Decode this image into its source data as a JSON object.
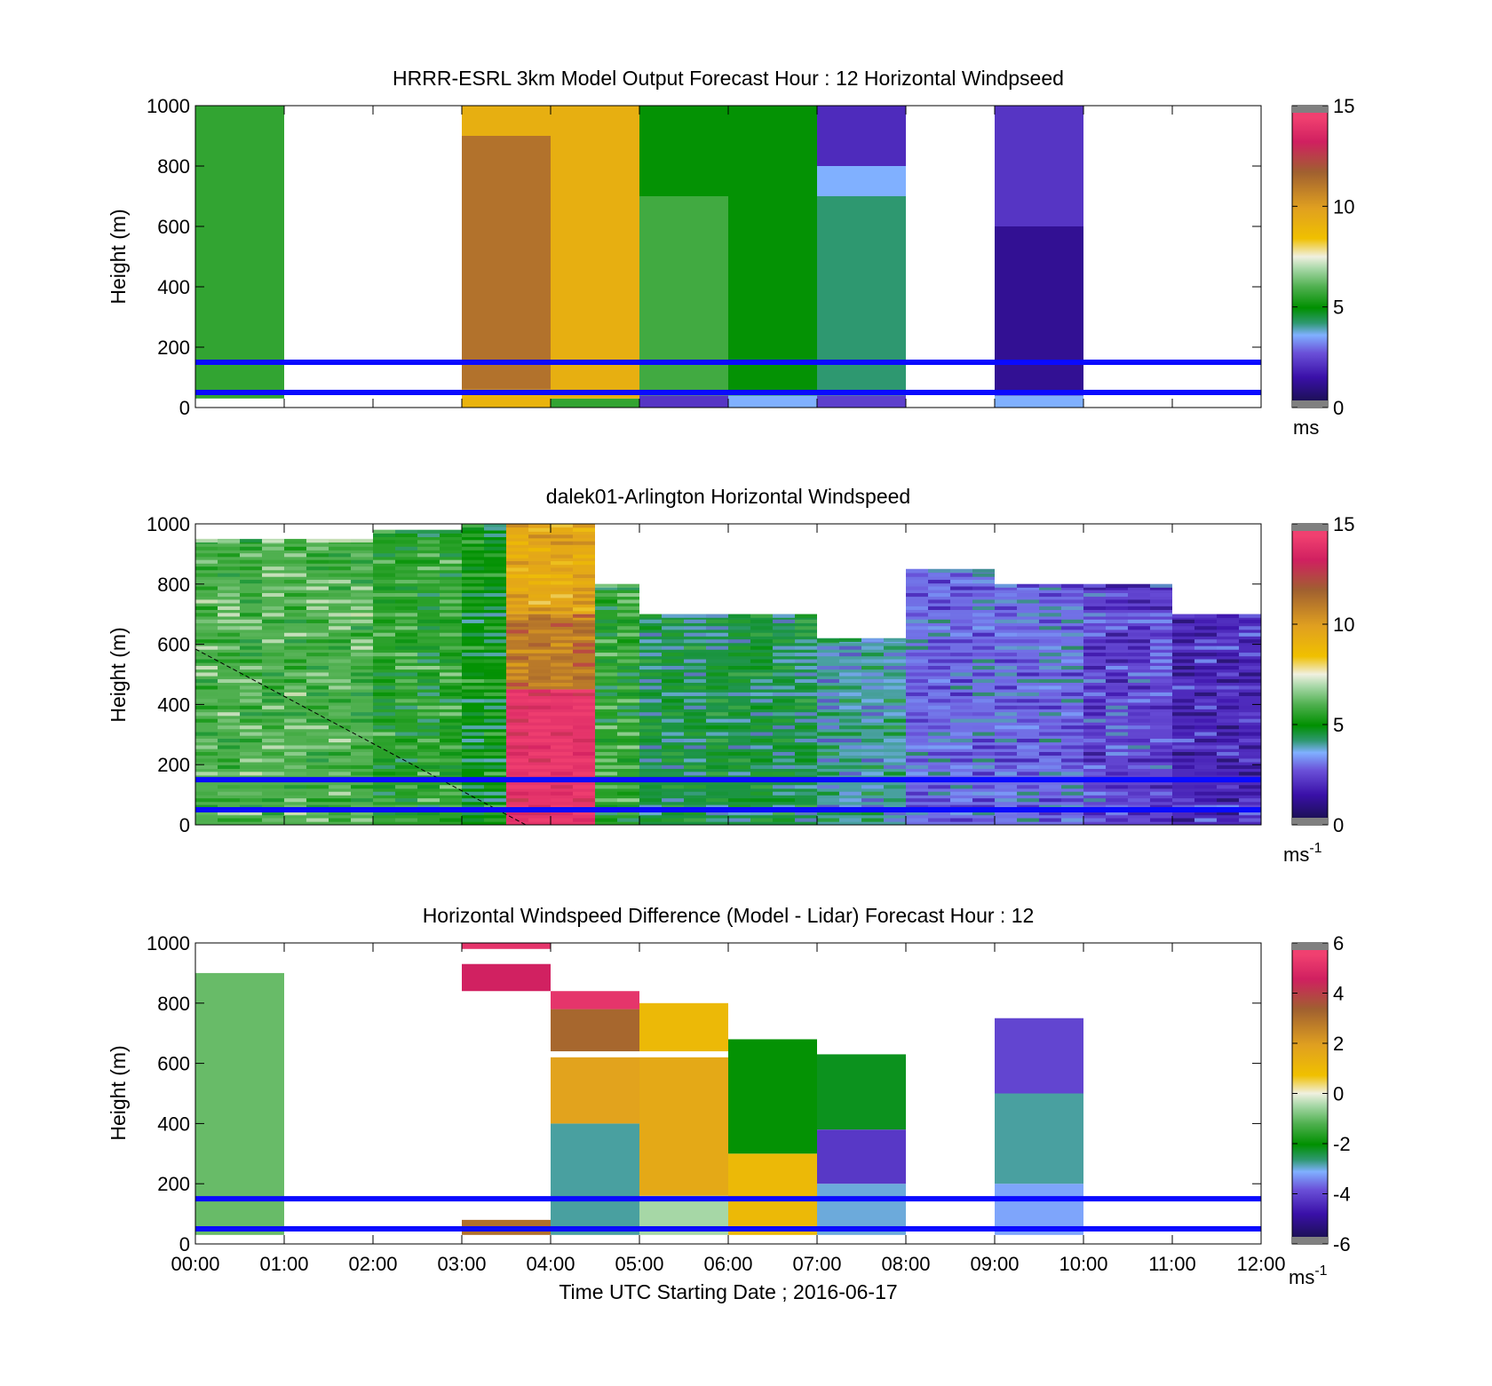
{
  "figure": {
    "xlabel": "Time UTC  Starting Date ; 2016-06-17",
    "time_ticks": [
      "00:00",
      "01:00",
      "02:00",
      "03:00",
      "04:00",
      "05:00",
      "06:00",
      "07:00",
      "08:00",
      "09:00",
      "10:00",
      "11:00",
      "12:00"
    ],
    "height_ticks": [
      "0",
      "200",
      "400",
      "600",
      "800",
      "1000"
    ],
    "reference_lines_m": [
      50,
      150
    ],
    "reference_line_color": "#0a0aff"
  },
  "colormap_stops": [
    "#141040",
    "#3a10a8",
    "#6a50d8",
    "#80b0ff",
    "#2e9870",
    "#009000",
    "#50b050",
    "#a8d8a8",
    "#f0f0e0",
    "#f0c000",
    "#e0a020",
    "#a06030",
    "#d02060",
    "#f04070"
  ],
  "chart_data": [
    {
      "type": "heatmap",
      "title": "HRRR-ESRL 3km Model Output   Forecast Hour : 12 Horizontal Windpseed",
      "ylabel": "Height (m)",
      "xlim_hours": [
        0,
        12
      ],
      "ylim": [
        0,
        1000
      ],
      "cbar_ticks": [
        "0",
        "5",
        "10",
        "15"
      ],
      "cbar_range": [
        0,
        15
      ],
      "cbar_unit": "ms",
      "cbar_unit_sup": "",
      "columns": [
        {
          "t0": 0,
          "t1": 1,
          "cells": [
            [
              30,
              1000,
              5.6
            ]
          ]
        },
        {
          "t0": 3,
          "t1": 4,
          "cells": [
            [
              0,
              60,
              9
            ],
            [
              60,
              900,
              11.2
            ],
            [
              900,
              1000,
              9.2
            ]
          ]
        },
        {
          "t0": 4,
          "t1": 5,
          "cells": [
            [
              0,
              30,
              5.6
            ],
            [
              30,
              1000,
              9.2
            ]
          ]
        },
        {
          "t0": 5,
          "t1": 6,
          "cells": [
            [
              0,
              40,
              2.2
            ],
            [
              40,
              700,
              5.8
            ],
            [
              700,
              1000,
              5.0
            ]
          ]
        },
        {
          "t0": 6,
          "t1": 7,
          "cells": [
            [
              0,
              40,
              3.6
            ],
            [
              40,
              1000,
              5.0
            ]
          ]
        },
        {
          "t0": 7,
          "t1": 8,
          "cells": [
            [
              0,
              40,
              2.4
            ],
            [
              40,
              700,
              4.2
            ],
            [
              700,
              800,
              3.6
            ],
            [
              800,
              1000,
              2.0
            ]
          ]
        },
        {
          "t0": 9,
          "t1": 10,
          "cells": [
            [
              0,
              40,
              3.6
            ],
            [
              40,
              600,
              1.2
            ],
            [
              600,
              1000,
              2.2
            ]
          ]
        }
      ]
    },
    {
      "type": "heatmap",
      "title": "dalek01-Arlington  Horizontal Windspeed",
      "ylabel": "Height (m)",
      "xlim_hours": [
        0,
        12
      ],
      "ylim": [
        0,
        1000
      ],
      "cbar_ticks": [
        "0",
        "5",
        "10",
        "15"
      ],
      "cbar_range": [
        0,
        15
      ],
      "cbar_unit": "ms",
      "cbar_unit_sup": "-1",
      "columns": [
        {
          "t0": 0,
          "t1": 2,
          "cells": [
            [
              0,
              950,
              6.0
            ]
          ]
        },
        {
          "t0": 2,
          "t1": 3,
          "cells": [
            [
              0,
              980,
              5.5
            ]
          ]
        },
        {
          "t0": 3,
          "t1": 3.5,
          "cells": [
            [
              0,
              1000,
              5.0
            ]
          ]
        },
        {
          "t0": 3.5,
          "t1": 4.5,
          "cells": [
            [
              0,
              450,
              14.0
            ],
            [
              450,
              700,
              11.0
            ],
            [
              700,
              1000,
              9.5
            ]
          ]
        },
        {
          "t0": 4.5,
          "t1": 5,
          "cells": [
            [
              0,
              800,
              5.5
            ]
          ]
        },
        {
          "t0": 5,
          "t1": 7,
          "cells": [
            [
              0,
              700,
              4.5
            ]
          ]
        },
        {
          "t0": 7,
          "t1": 8,
          "cells": [
            [
              0,
              620,
              4.0
            ]
          ]
        },
        {
          "t0": 8,
          "t1": 9,
          "cells": [
            [
              0,
              850,
              3.0
            ]
          ]
        },
        {
          "t0": 9,
          "t1": 10,
          "cells": [
            [
              0,
              800,
              3.0
            ]
          ]
        },
        {
          "t0": 10,
          "t1": 11,
          "cells": [
            [
              0,
              800,
              2.5
            ]
          ]
        },
        {
          "t0": 11,
          "t1": 12,
          "cells": [
            [
              0,
              700,
              2.0
            ]
          ]
        }
      ]
    },
    {
      "type": "heatmap",
      "title": "Horizontal Windspeed Difference (Model - Lidar) Forecast Hour : 12",
      "ylabel": "Height (m)",
      "xlim_hours": [
        0,
        12
      ],
      "ylim": [
        0,
        1000
      ],
      "cbar_ticks": [
        "-6",
        "-4",
        "-2",
        "0",
        "2",
        "4",
        "6"
      ],
      "cbar_range": [
        -6,
        6
      ],
      "cbar_unit": "ms",
      "cbar_unit_sup": "-1",
      "columns": [
        {
          "t0": 0,
          "t1": 1,
          "cells": [
            [
              30,
              900,
              -1.0
            ]
          ]
        },
        {
          "t0": 3,
          "t1": 4,
          "cells": [
            [
              30,
              80,
              3.0
            ],
            [
              840,
              930,
              4.6
            ],
            [
              980,
              1000,
              5.2
            ]
          ]
        },
        {
          "t0": 4,
          "t1": 5,
          "cells": [
            [
              30,
              400,
              -2.8
            ],
            [
              400,
              620,
              1.8
            ],
            [
              640,
              780,
              3.2
            ],
            [
              780,
              840,
              5.2
            ]
          ]
        },
        {
          "t0": 5,
          "t1": 6,
          "cells": [
            [
              30,
              160,
              -0.5
            ],
            [
              160,
              620,
              1.6
            ],
            [
              640,
              800,
              1.0
            ]
          ]
        },
        {
          "t0": 6,
          "t1": 7,
          "cells": [
            [
              30,
              300,
              1.0
            ],
            [
              300,
              680,
              -2.0
            ]
          ]
        },
        {
          "t0": 7,
          "t1": 8,
          "cells": [
            [
              30,
              200,
              -3.0
            ],
            [
              200,
              380,
              -4.2
            ],
            [
              380,
              630,
              -2.2
            ]
          ]
        },
        {
          "t0": 9,
          "t1": 10,
          "cells": [
            [
              30,
              200,
              -3.2
            ],
            [
              200,
              500,
              -2.8
            ],
            [
              500,
              750,
              -4.0
            ]
          ]
        }
      ]
    }
  ]
}
